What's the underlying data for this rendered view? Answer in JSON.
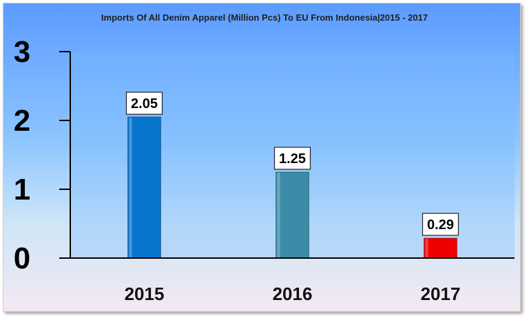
{
  "chart_data": {
    "type": "bar",
    "title": "Imports Of All Denim Apparel (Million Pcs) To EU From Indonesia|2015 - 2017",
    "categories": [
      "2015",
      "2016",
      "2017"
    ],
    "values": [
      2.05,
      1.25,
      0.29
    ],
    "data_labels": [
      "2.05",
      "1.25",
      "0.29"
    ],
    "bar_colors": [
      "#0a75cc",
      "#3b8ca6",
      "#ee0000"
    ],
    "ylim": [
      0,
      3
    ],
    "yticks": [
      "0",
      "1",
      "2",
      "3"
    ],
    "grid": false,
    "legend": "none"
  }
}
